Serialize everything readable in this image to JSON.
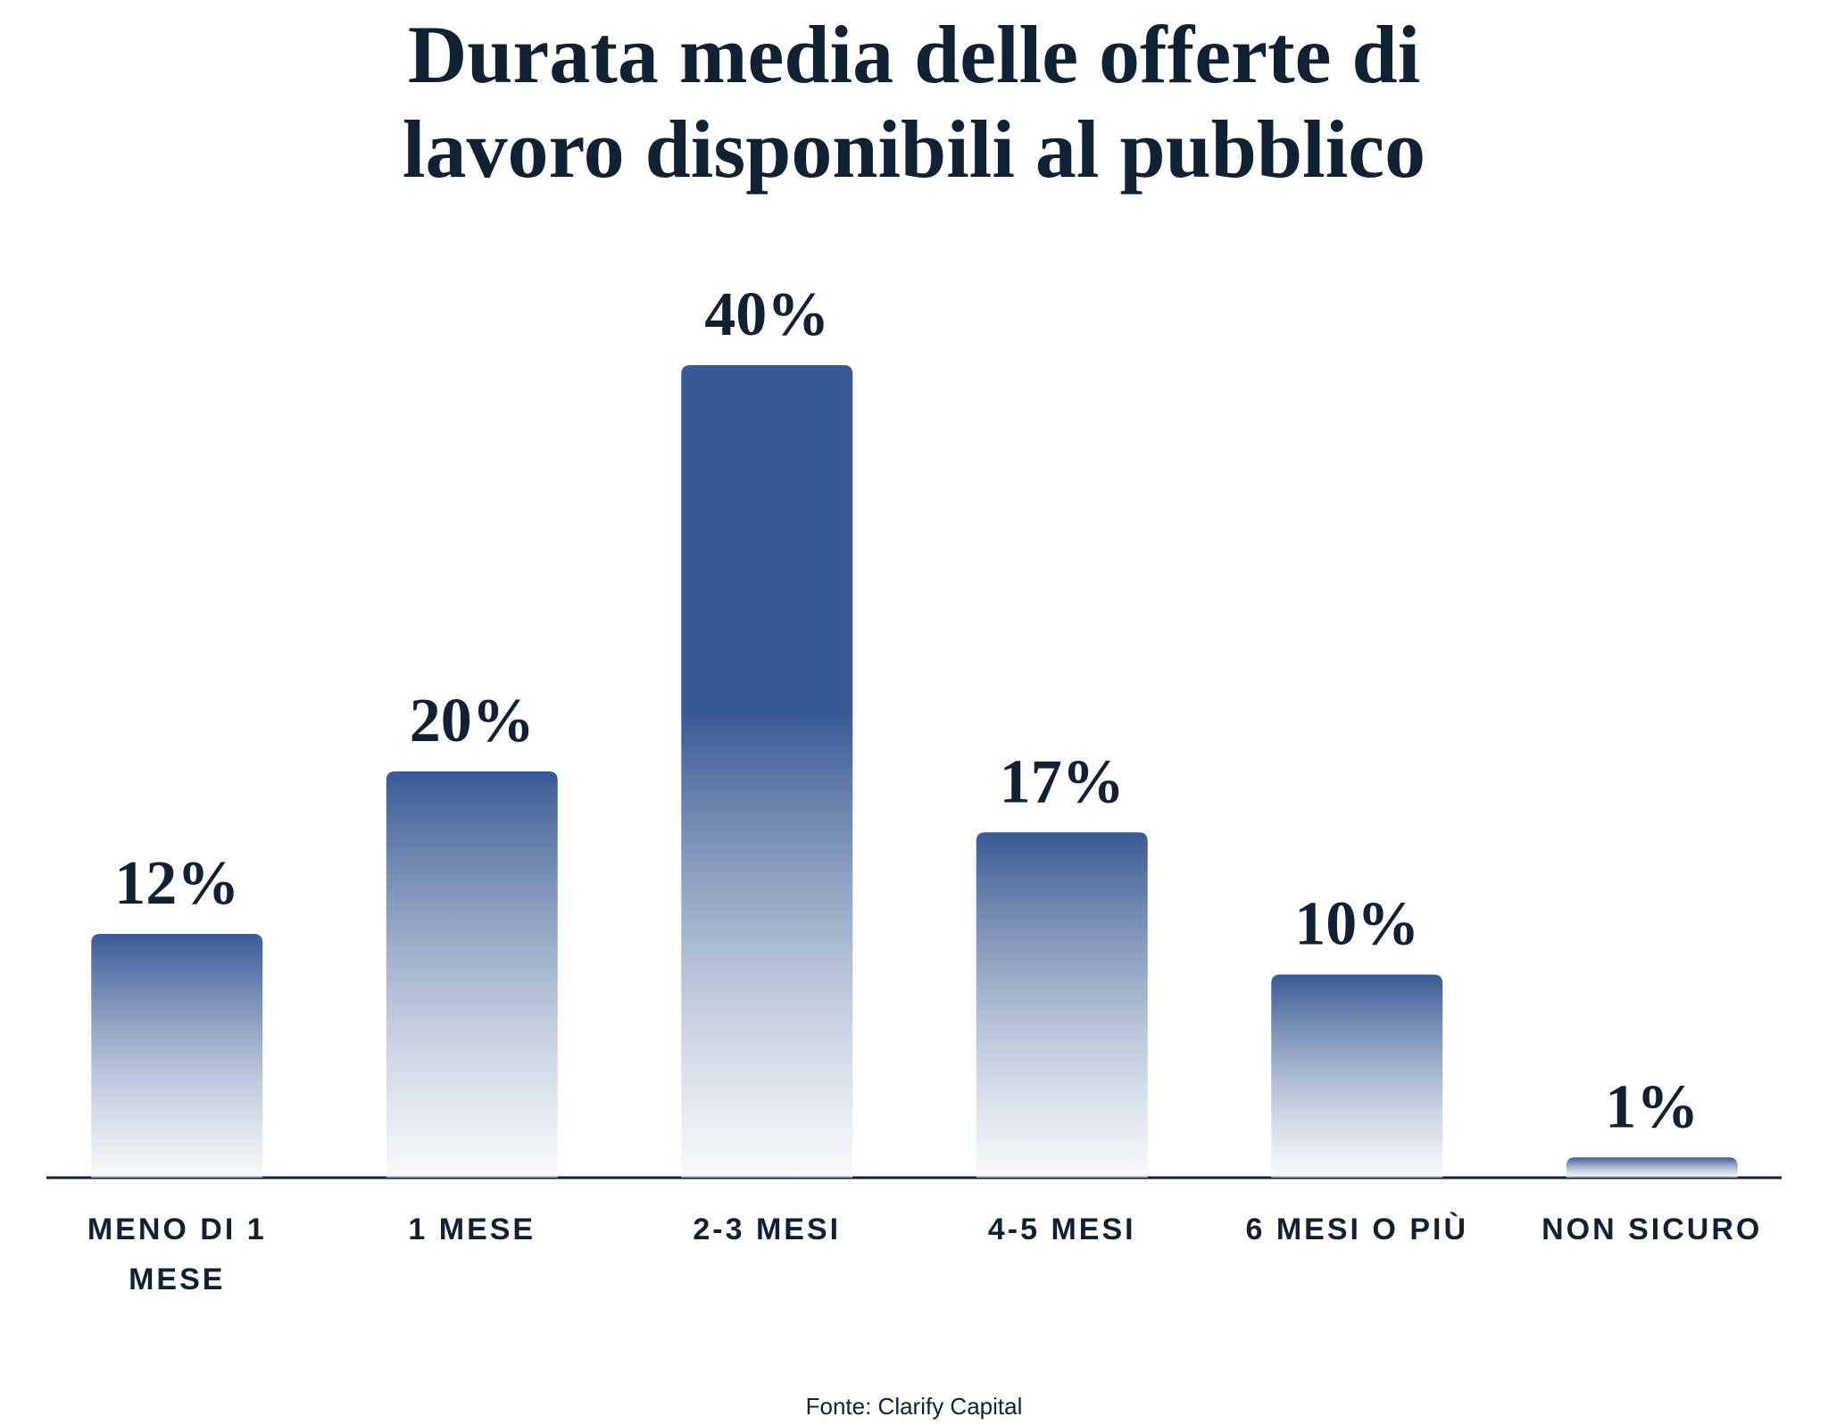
{
  "chart_data": {
    "type": "bar",
    "title": "Durata media delle offerte di lavoro disponibili al pubblico",
    "categories": [
      "MENO DI 1 MESE",
      "1 MESE",
      "2-3 MESI",
      "4-5 MESI",
      "6 MESI O PIÙ",
      "NON SICURO"
    ],
    "values": [
      12,
      20,
      40,
      17,
      10,
      1
    ],
    "value_labels": [
      "12%",
      "20%",
      "40%",
      "17%",
      "10%",
      "1%"
    ],
    "color": "#385a94",
    "source": "Fonte: Clarify Capital"
  }
}
